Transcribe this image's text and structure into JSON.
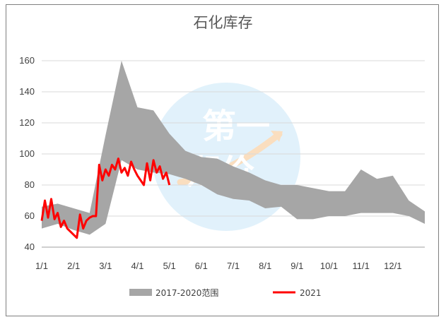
{
  "chart_data": {
    "type": "area",
    "title": "石化库存",
    "xlabel": "",
    "ylabel": "",
    "ylim": [
      40,
      160
    ],
    "yticks": [
      40,
      60,
      80,
      100,
      120,
      140,
      160
    ],
    "xticks": [
      "1/1",
      "2/1",
      "3/1",
      "4/1",
      "5/1",
      "6/1",
      "7/1",
      "8/1",
      "9/1",
      "10/1",
      "11/1",
      "12/1"
    ],
    "grid": "horizontal",
    "legend_position": "bottom",
    "watermark_text": "第一期价",
    "series": [
      {
        "name": "2017-2020范围",
        "kind": "range",
        "color": "#a6a6a6",
        "x": [
          0,
          0.5,
          1,
          1.5,
          2,
          2.5,
          3,
          3.5,
          4,
          4.5,
          5,
          5.5,
          6,
          6.5,
          7,
          7.5,
          8,
          8.5,
          9,
          9.5,
          10,
          10.5,
          11,
          11.5,
          12
        ],
        "low": [
          52,
          55,
          51,
          48,
          55,
          96,
          90,
          88,
          87,
          84,
          80,
          74,
          71,
          70,
          65,
          66,
          58,
          58,
          60,
          60,
          62,
          62,
          62,
          60,
          55
        ],
        "high": [
          66,
          68,
          65,
          62,
          112,
          160,
          130,
          128,
          113,
          102,
          98,
          97,
          92,
          88,
          83,
          80,
          80,
          78,
          76,
          76,
          90,
          84,
          86,
          70,
          63
        ]
      },
      {
        "name": "2021",
        "kind": "line",
        "color": "#ff0000",
        "x": [
          0,
          0.1,
          0.2,
          0.3,
          0.4,
          0.5,
          0.6,
          0.7,
          0.8,
          0.9,
          1.0,
          1.1,
          1.2,
          1.3,
          1.4,
          1.5,
          1.6,
          1.7,
          1.8,
          1.9,
          2.0,
          2.1,
          2.2,
          2.3,
          2.4,
          2.5,
          2.6,
          2.7,
          2.8,
          2.9,
          3.0,
          3.1,
          3.2,
          3.3,
          3.4,
          3.5,
          3.6,
          3.7,
          3.8,
          3.9,
          4.0
        ],
        "values": [
          57,
          70,
          59,
          71,
          58,
          62,
          53,
          57,
          52,
          50,
          48,
          46,
          61,
          52,
          57,
          59,
          60,
          60,
          93,
          83,
          90,
          86,
          93,
          90,
          97,
          88,
          91,
          86,
          95,
          90,
          86,
          83,
          80,
          94,
          83,
          96,
          88,
          92,
          84,
          88,
          80
        ]
      }
    ]
  }
}
